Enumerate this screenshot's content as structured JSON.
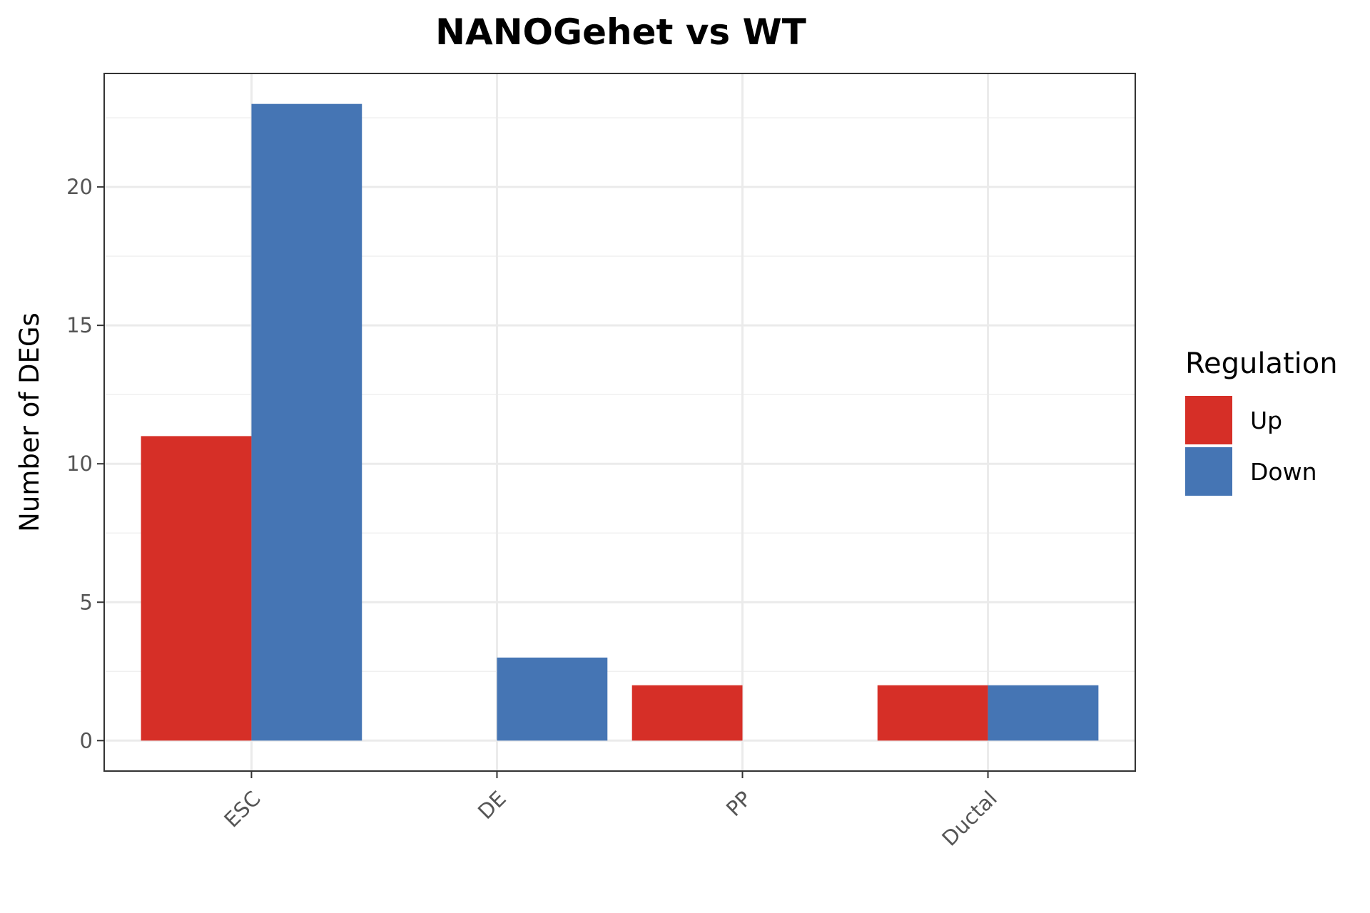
{
  "chart_data": {
    "type": "bar",
    "title": "NANOGehet vs WT",
    "xlabel": "",
    "ylabel": "Number of DEGs",
    "categories": [
      "ESC",
      "DE",
      "PP",
      "Ductal"
    ],
    "series": [
      {
        "name": "Up",
        "color": "#d62f27",
        "values": [
          11,
          0,
          2,
          2
        ]
      },
      {
        "name": "Down",
        "color": "#4575b4",
        "values": [
          23,
          3,
          0,
          2
        ]
      }
    ],
    "ylim": [
      -1.1,
      24.1
    ],
    "yticks": [
      0,
      5,
      10,
      15,
      20
    ],
    "y_tick_labels": [
      "0",
      "5",
      "10",
      "15",
      "20"
    ],
    "grid": true,
    "legend": {
      "title": "Regulation",
      "position": "right"
    }
  }
}
